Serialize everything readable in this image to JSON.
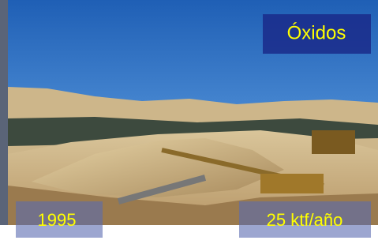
{
  "overlay": {
    "title": "Óxidos",
    "year": "1995",
    "capacity": "25 ktf/año"
  }
}
